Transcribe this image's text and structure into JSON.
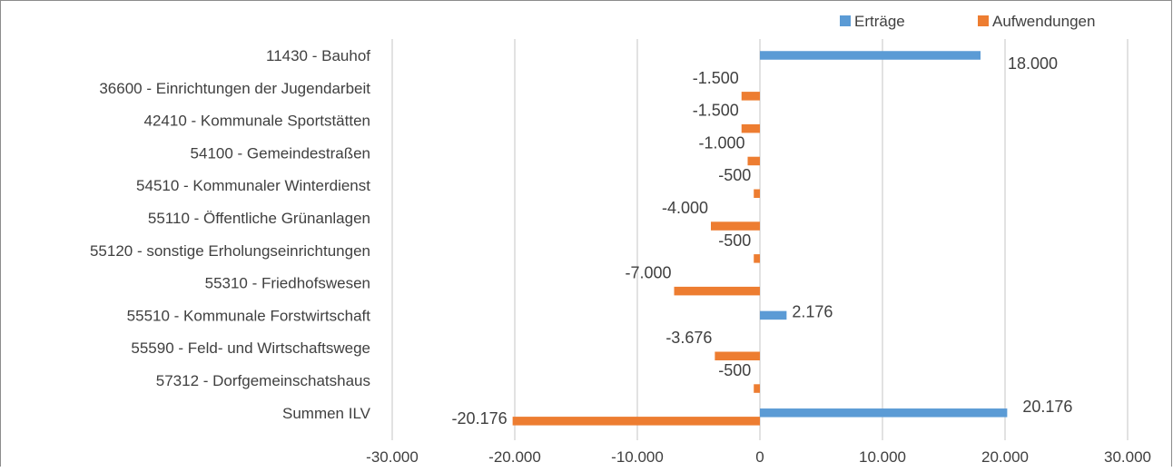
{
  "chart_data": {
    "type": "bar",
    "orientation": "horizontal",
    "categories": [
      "11430 - Bauhof",
      "36600 - Einrichtungen der Jugendarbeit",
      "42410 - Kommunale Sportstätten",
      "54100 - Gemeindestraßen",
      "54510 - Kommunaler Winterdienst",
      "55110 - Öffentliche Grünanlagen",
      "55120 - sonstige Erholungseinrichtungen",
      "55310 - Friedhofswesen",
      "55510 - Kommunale Forstwirtschaft",
      "55590 - Feld- und Wirtschaftswege",
      "57312 - Dorfgemeinschatshaus",
      "Summen ILV"
    ],
    "series": [
      {
        "name": "Erträge",
        "color": "#5B9BD5",
        "values": [
          18000,
          null,
          null,
          null,
          null,
          null,
          null,
          null,
          2176,
          null,
          null,
          20176
        ],
        "labels": [
          "18.000",
          "",
          "",
          "",
          "",
          "",
          "",
          "",
          "2.176",
          "",
          "",
          "20.176"
        ]
      },
      {
        "name": "Aufwendungen",
        "color": "#ED7D31",
        "values": [
          null,
          -1500,
          -1500,
          -1000,
          -500,
          -4000,
          -500,
          -7000,
          null,
          -3676,
          -500,
          -20176
        ],
        "labels": [
          "",
          "-1.500",
          "-1.500",
          "-1.000",
          "-500",
          "-4.000",
          "-500",
          "-7.000",
          "",
          "-3.676",
          "-500",
          "-20.176"
        ]
      }
    ],
    "xlim": [
      -30000,
      30000
    ],
    "xticks": [
      -30000,
      -20000,
      -10000,
      0,
      10000,
      20000,
      30000
    ],
    "xtick_labels": [
      "-30.000",
      "-20.000",
      "-10.000",
      "0",
      "10.000",
      "20.000",
      "30.000"
    ],
    "grid": true,
    "legend_position": "top-right",
    "title": "",
    "xlabel": "",
    "ylabel": ""
  }
}
